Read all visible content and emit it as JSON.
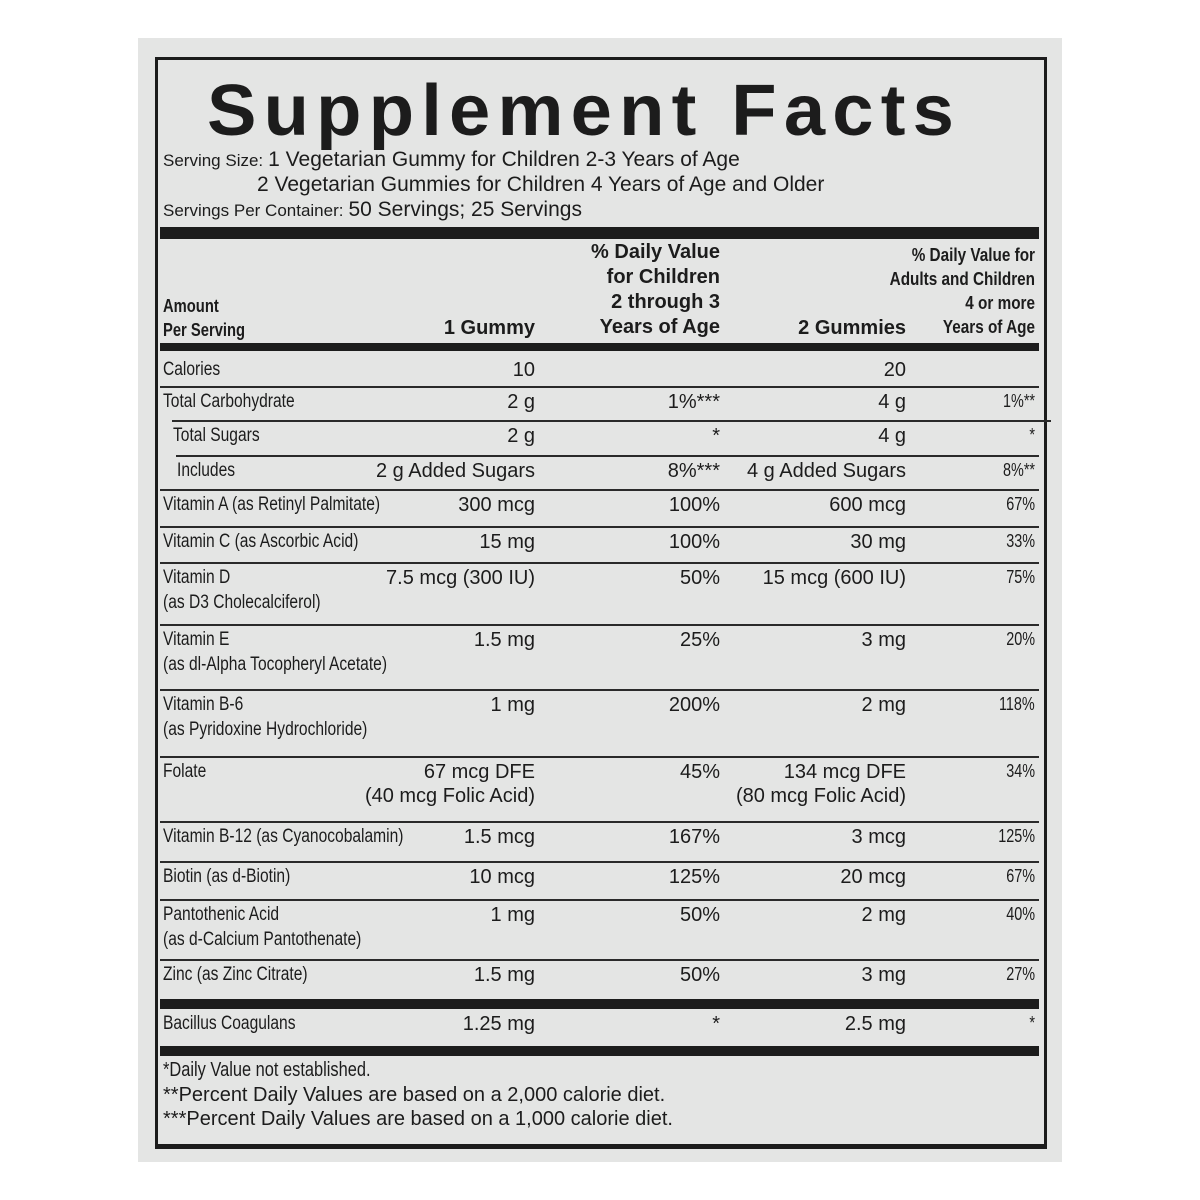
{
  "title": "Supplement Facts",
  "serving": {
    "size_label": "Serving Size:",
    "size_line1": "1 Vegetarian Gummy for Children 2-3 Years of Age",
    "size_line2": "2 Vegetarian Gummies for Children 4 Years of Age and Older",
    "per_container_label": "Servings Per Container:",
    "per_container": "50 Servings; 25 Servings"
  },
  "columns": {
    "amount": [
      "Amount",
      "Per Serving"
    ],
    "one_gummy": "1 Gummy",
    "dv_children": [
      "% Daily Value",
      "for Children",
      "2 through 3",
      "Years of Age"
    ],
    "two_gummies": "2 Gummies",
    "dv_adults": [
      "% Daily Value for",
      "Adults and Children",
      "4 or more",
      "Years of Age"
    ]
  },
  "nutrients": [
    {
      "name": "Calories",
      "one": "10",
      "dv1": "",
      "two": "20",
      "dv2": ""
    },
    {
      "name": "Total Carbohydrate",
      "one": "2 g",
      "dv1": "1%***",
      "two": "4 g",
      "dv2": "1%**"
    },
    {
      "name": "Total Sugars",
      "one": "2 g",
      "dv1": "*",
      "two": "4 g",
      "dv2": "*"
    },
    {
      "name": "Includes",
      "one": "2 g Added Sugars",
      "dv1": "8%***",
      "two": "4 g Added Sugars",
      "dv2": "8%**"
    },
    {
      "name": "Vitamin A (as Retinyl Palmitate)",
      "one": "300 mcg",
      "dv1": "100%",
      "two": "600 mcg",
      "dv2": "67%"
    },
    {
      "name": "Vitamin C (as Ascorbic Acid)",
      "one": "15 mg",
      "dv1": "100%",
      "two": "30 mg",
      "dv2": "33%"
    },
    {
      "name": "Vitamin D",
      "sub": "(as D3 Cholecalciferol)",
      "one": "7.5 mcg (300 IU)",
      "dv1": "50%",
      "two": "15 mcg (600 IU)",
      "dv2": "75%"
    },
    {
      "name": "Vitamin E",
      "sub": "(as dl-Alpha Tocopheryl Acetate)",
      "one": "1.5 mg",
      "dv1": "25%",
      "two": "3 mg",
      "dv2": "20%"
    },
    {
      "name": "Vitamin B-6",
      "sub": "(as Pyridoxine Hydrochloride)",
      "one": "1 mg",
      "dv1": "200%",
      "two": "2 mg",
      "dv2": "118%"
    },
    {
      "name": "Folate",
      "one": "67 mcg DFE",
      "one2": "(40 mcg Folic Acid)",
      "dv1": "45%",
      "two": "134 mcg DFE",
      "two2": "(80 mcg Folic Acid)",
      "dv2": "34%"
    },
    {
      "name": "Vitamin B-12 (as Cyanocobalamin)",
      "one": "1.5 mcg",
      "dv1": "167%",
      "two": "3 mcg",
      "dv2": "125%"
    },
    {
      "name": "Biotin (as d-Biotin)",
      "one": "10 mcg",
      "dv1": "125%",
      "two": "20 mcg",
      "dv2": "67%"
    },
    {
      "name": "Pantothenic Acid",
      "sub": "(as d-Calcium Pantothenate)",
      "one": "1 mg",
      "dv1": "50%",
      "two": "2 mg",
      "dv2": "40%"
    },
    {
      "name": "Zinc (as Zinc Citrate)",
      "one": "1.5 mg",
      "dv1": "50%",
      "two": "3 mg",
      "dv2": "27%"
    },
    {
      "name": "Bacillus Coagulans",
      "one": "1.25 mg",
      "dv1": "*",
      "two": "2.5 mg",
      "dv2": "*"
    }
  ],
  "footnotes": [
    "*Daily Value not established.",
    "**Percent Daily Values are based on a 2,000 calorie diet.",
    "***Percent Daily Values are based on a 1,000 calorie diet."
  ]
}
